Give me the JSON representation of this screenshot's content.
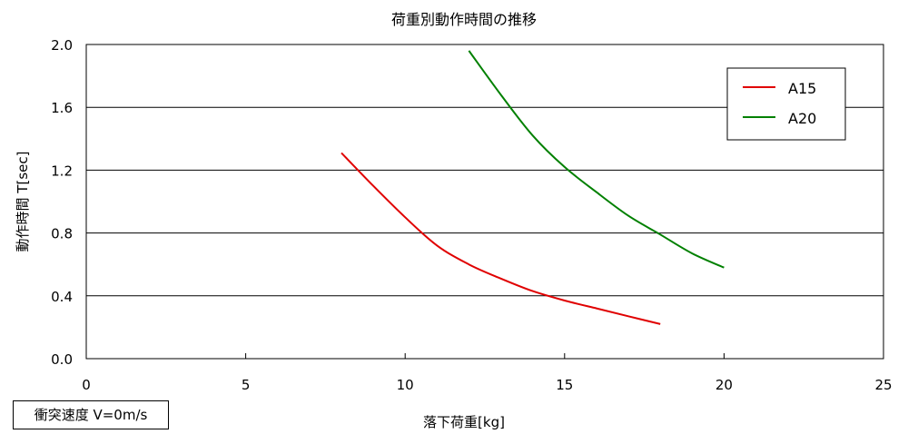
{
  "chart_data": {
    "type": "line",
    "title": "荷重別動作時間の推移",
    "xlabel": "落下荷重[kg]",
    "ylabel": "動作時間 T[sec]",
    "xlim": [
      0,
      25
    ],
    "ylim": [
      0,
      2.0
    ],
    "x_ticks": [
      "0",
      "5",
      "10",
      "15",
      "20",
      "25"
    ],
    "y_ticks": [
      "0.0",
      "0.4",
      "0.8",
      "1.2",
      "1.6",
      "2.0"
    ],
    "grid": "horizontal",
    "legend_position": "top-right",
    "series": [
      {
        "name": "A15",
        "color": "#e00000",
        "points": [
          [
            8,
            1.31
          ],
          [
            9,
            1.1
          ],
          [
            10,
            0.9
          ],
          [
            11,
            0.72
          ],
          [
            12,
            0.6
          ],
          [
            13,
            0.51
          ],
          [
            14,
            0.43
          ],
          [
            15,
            0.37
          ],
          [
            16,
            0.32
          ],
          [
            17,
            0.27
          ],
          [
            18,
            0.22
          ]
        ]
      },
      {
        "name": "A20",
        "color": "#008000",
        "points": [
          [
            12,
            1.96
          ],
          [
            13,
            1.68
          ],
          [
            14,
            1.42
          ],
          [
            15,
            1.22
          ],
          [
            16,
            1.06
          ],
          [
            17,
            0.91
          ],
          [
            18,
            0.79
          ],
          [
            19,
            0.67
          ],
          [
            20,
            0.58
          ]
        ]
      }
    ],
    "annotation": "衝突速度 V=0m/s"
  }
}
